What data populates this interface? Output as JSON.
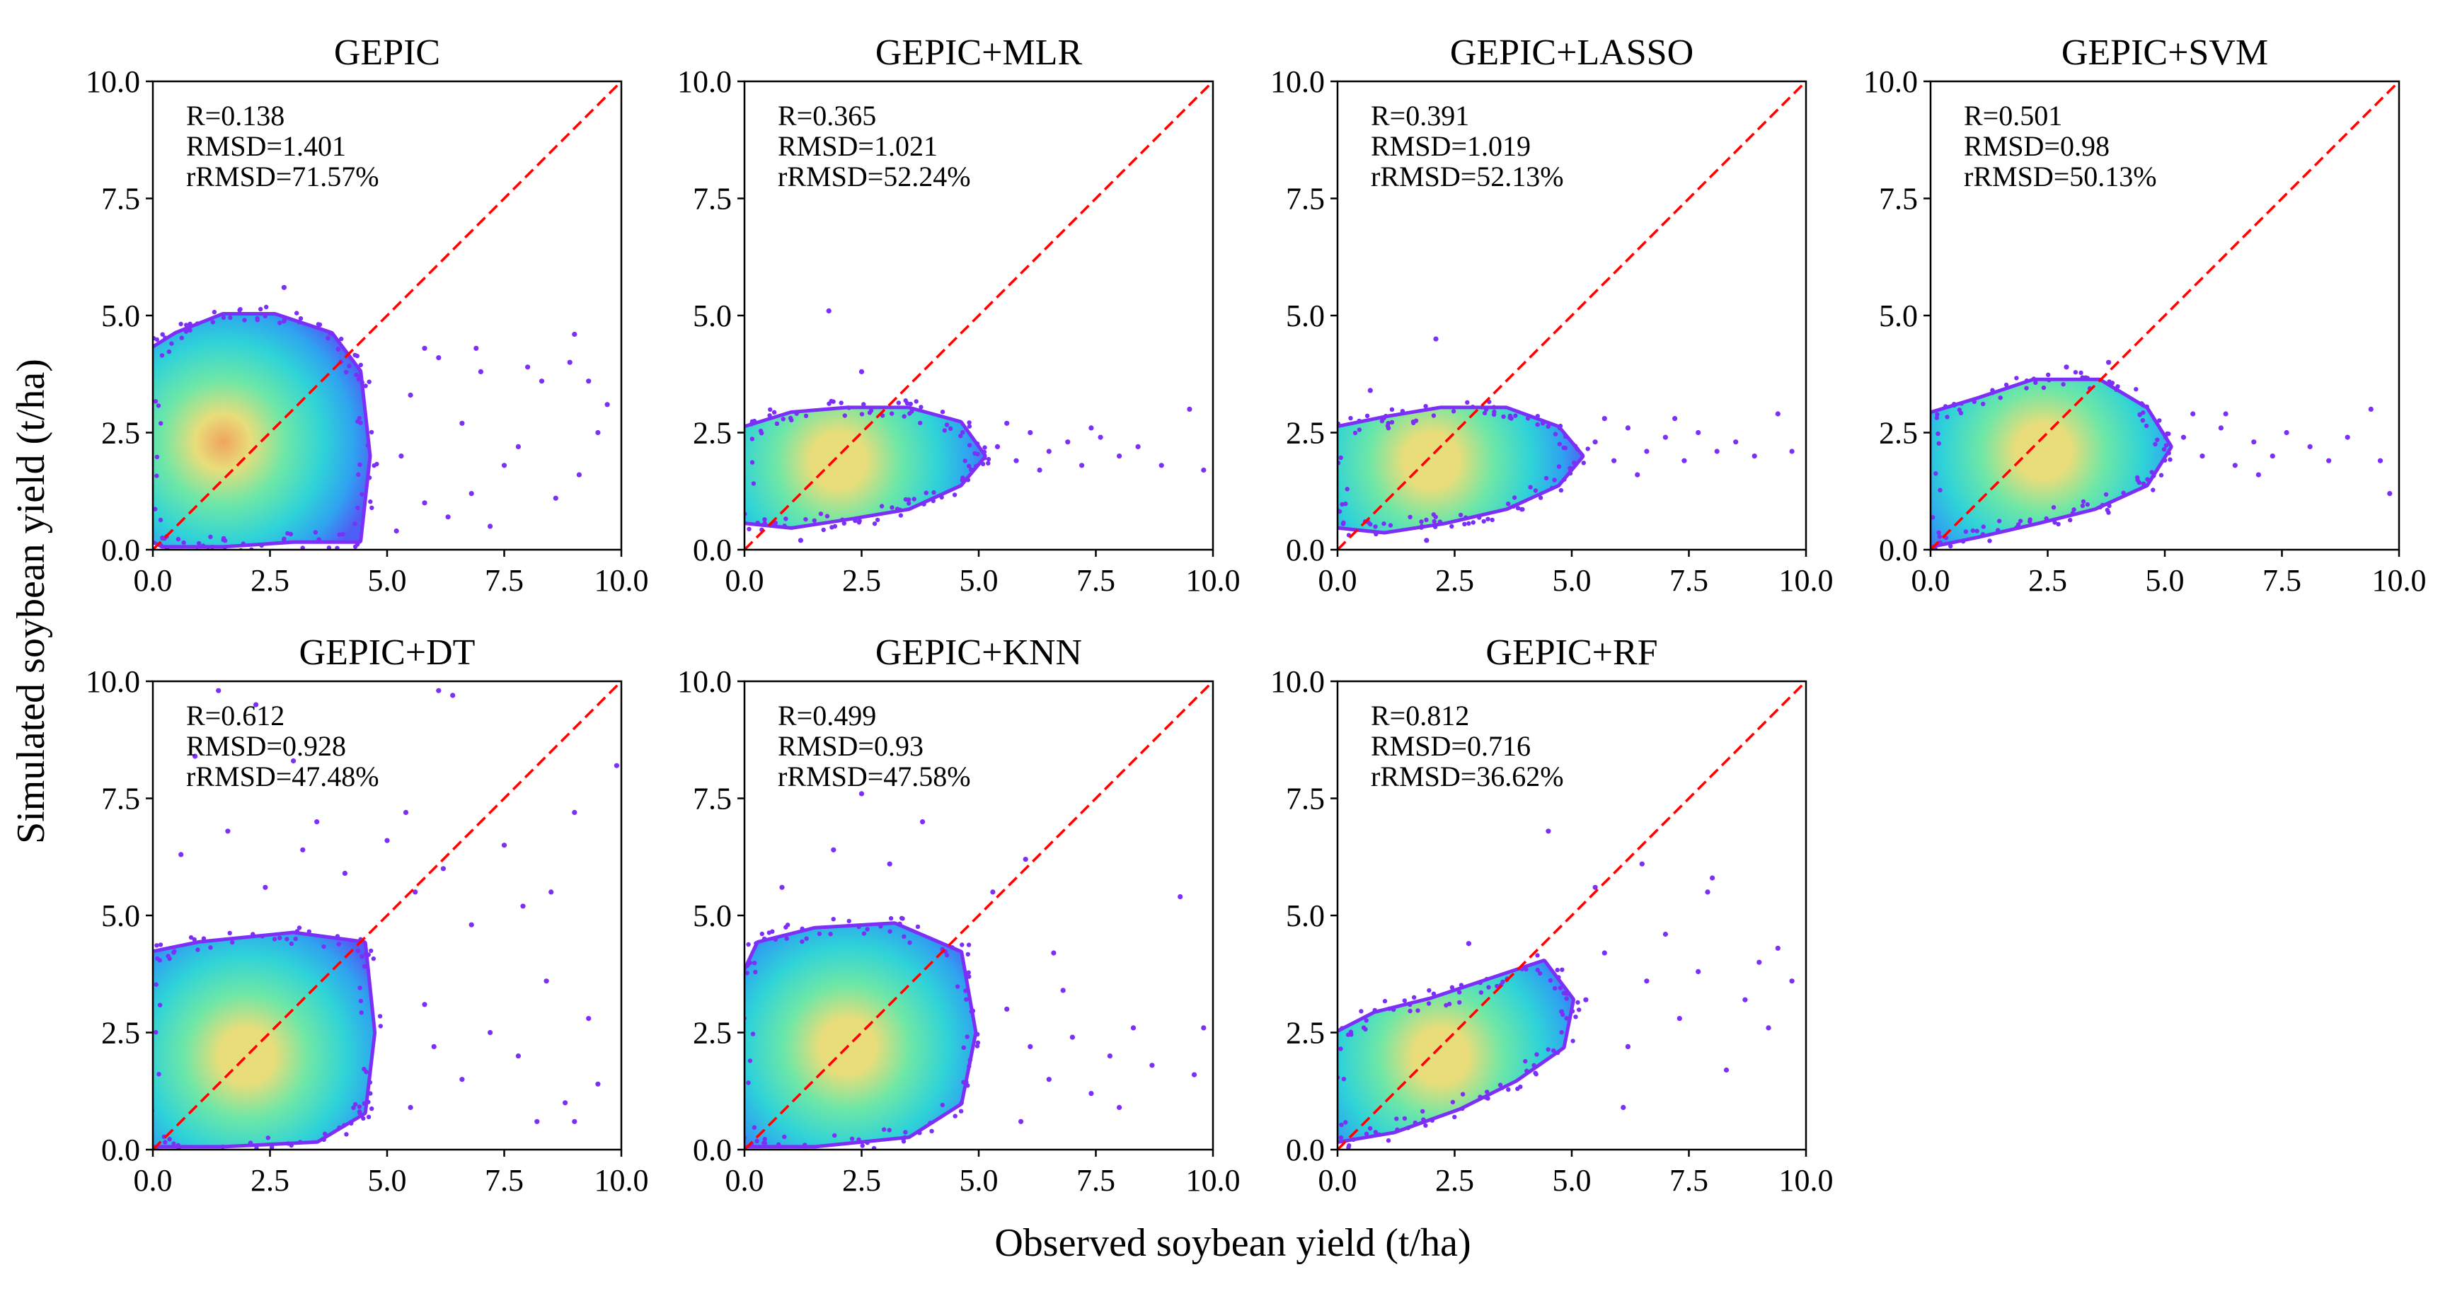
{
  "figure": {
    "xlabel": "Observed soybean yield (t/ha)",
    "ylabel": "Simulated soybean yield (t/ha)"
  },
  "colors": {
    "reference_line": "#ff0000",
    "axes": "#000000",
    "density_colormap": [
      "#7b2ff7",
      "#4f5ff5",
      "#2fa2f0",
      "#2fd3d8",
      "#6fe7a6",
      "#e8dd7a",
      "#f0a45e"
    ]
  },
  "chart_data": [
    {
      "type": "scatter",
      "title": "GEPIC",
      "stats": [
        "R=0.138",
        "RMSD=1.401",
        "rRMSD=71.57%"
      ],
      "xlim": [
        0,
        10
      ],
      "ylim": [
        0,
        10
      ],
      "xticks": [
        "0.0",
        "2.5",
        "5.0",
        "7.5",
        "10.0"
      ],
      "yticks": [
        "0.0",
        "2.5",
        "5.0",
        "7.5",
        "10.0"
      ],
      "reference_line": {
        "x": [
          0,
          10
        ],
        "y": [
          0,
          10
        ],
        "style": "dashed"
      },
      "point_cloud": {
        "color_scale": "density",
        "core": [
          [
            0.02,
            0.2
          ],
          [
            0.2,
            0.1
          ],
          [
            1.5,
            0.1
          ],
          [
            3.0,
            0.2
          ],
          [
            4.4,
            0.2
          ],
          [
            4.6,
            2.0
          ],
          [
            4.4,
            3.8
          ],
          [
            3.8,
            4.6
          ],
          [
            2.6,
            5.0
          ],
          [
            1.5,
            5.0
          ],
          [
            0.5,
            4.6
          ],
          [
            0.02,
            4.3
          ]
        ],
        "center": [
          1.5,
          2.3
        ],
        "outliers": [
          [
            5.2,
            0.4
          ],
          [
            5.8,
            1.0
          ],
          [
            6.3,
            0.7
          ],
          [
            6.8,
            1.2
          ],
          [
            7.2,
            0.5
          ],
          [
            7.8,
            2.2
          ],
          [
            8.3,
            3.6
          ],
          [
            8.6,
            1.1
          ],
          [
            9.0,
            4.6
          ],
          [
            9.3,
            3.6
          ],
          [
            9.5,
            2.5
          ],
          [
            9.7,
            3.1
          ],
          [
            6.1,
            4.1
          ],
          [
            5.5,
            3.3
          ],
          [
            7.0,
            3.8
          ],
          [
            6.6,
            2.7
          ],
          [
            8.0,
            3.9
          ],
          [
            5.3,
            2.0
          ],
          [
            8.9,
            4.0
          ],
          [
            7.5,
            1.8
          ],
          [
            5.8,
            4.3
          ],
          [
            9.1,
            1.6
          ],
          [
            6.9,
            4.3
          ],
          [
            2.8,
            5.6
          ]
        ]
      }
    },
    {
      "type": "scatter",
      "title": "GEPIC+MLR",
      "stats": [
        "R=0.365",
        "RMSD=1.021",
        "rRMSD=52.24%"
      ],
      "xlim": [
        0,
        10
      ],
      "ylim": [
        0,
        10
      ],
      "xticks": [
        "0.0",
        "2.5",
        "5.0",
        "7.5",
        "10.0"
      ],
      "yticks": [
        "0.0",
        "2.5",
        "5.0",
        "7.5",
        "10.0"
      ],
      "reference_line": {
        "x": [
          0,
          10
        ],
        "y": [
          0,
          10
        ],
        "style": "dashed"
      },
      "point_cloud": {
        "color_scale": "density",
        "core": [
          [
            0.02,
            0.6
          ],
          [
            1.0,
            0.5
          ],
          [
            2.3,
            0.7
          ],
          [
            3.5,
            0.9
          ],
          [
            4.6,
            1.4
          ],
          [
            5.1,
            2.0
          ],
          [
            4.6,
            2.7
          ],
          [
            3.5,
            3.0
          ],
          [
            2.2,
            3.0
          ],
          [
            1.0,
            2.9
          ],
          [
            0.02,
            2.6
          ]
        ],
        "center": [
          2.0,
          1.9
        ],
        "outliers": [
          [
            5.4,
            2.2
          ],
          [
            5.8,
            1.9
          ],
          [
            6.1,
            2.5
          ],
          [
            6.5,
            2.1
          ],
          [
            6.9,
            2.3
          ],
          [
            7.2,
            1.8
          ],
          [
            7.6,
            2.4
          ],
          [
            8.0,
            2.0
          ],
          [
            8.4,
            2.2
          ],
          [
            8.9,
            1.8
          ],
          [
            9.5,
            3.0
          ],
          [
            9.8,
            1.7
          ],
          [
            6.3,
            1.7
          ],
          [
            7.4,
            2.6
          ],
          [
            5.6,
            2.7
          ],
          [
            1.8,
            5.1
          ],
          [
            2.5,
            3.8
          ],
          [
            1.2,
            0.2
          ]
        ]
      }
    },
    {
      "type": "scatter",
      "title": "GEPIC+LASSO",
      "stats": [
        "R=0.391",
        "RMSD=1.019",
        "rRMSD=52.13%"
      ],
      "xlim": [
        0,
        10
      ],
      "ylim": [
        0,
        10
      ],
      "xticks": [
        "0.0",
        "2.5",
        "5.0",
        "7.5",
        "10.0"
      ],
      "yticks": [
        "0.0",
        "2.5",
        "5.0",
        "7.5",
        "10.0"
      ],
      "reference_line": {
        "x": [
          0,
          10
        ],
        "y": [
          0,
          10
        ],
        "style": "dashed"
      },
      "point_cloud": {
        "color_scale": "density",
        "core": [
          [
            0.02,
            0.5
          ],
          [
            1.0,
            0.4
          ],
          [
            2.3,
            0.6
          ],
          [
            3.6,
            0.9
          ],
          [
            4.7,
            1.4
          ],
          [
            5.2,
            2.0
          ],
          [
            4.7,
            2.6
          ],
          [
            3.6,
            3.0
          ],
          [
            2.2,
            3.0
          ],
          [
            1.0,
            2.8
          ],
          [
            0.02,
            2.6
          ]
        ],
        "center": [
          2.0,
          1.9
        ],
        "outliers": [
          [
            5.5,
            2.3
          ],
          [
            5.9,
            1.9
          ],
          [
            6.2,
            2.6
          ],
          [
            6.6,
            2.1
          ],
          [
            7.0,
            2.4
          ],
          [
            7.4,
            1.9
          ],
          [
            7.7,
            2.5
          ],
          [
            8.1,
            2.1
          ],
          [
            8.5,
            2.3
          ],
          [
            8.9,
            2.0
          ],
          [
            9.4,
            2.9
          ],
          [
            9.7,
            2.1
          ],
          [
            6.4,
            1.6
          ],
          [
            7.2,
            2.8
          ],
          [
            5.7,
            2.8
          ],
          [
            2.1,
            4.5
          ],
          [
            0.7,
            3.4
          ],
          [
            1.9,
            0.2
          ]
        ]
      }
    },
    {
      "type": "scatter",
      "title": "GEPIC+SVM",
      "stats": [
        "R=0.501",
        "RMSD=0.98",
        "rRMSD=50.13%"
      ],
      "xlim": [
        0,
        10
      ],
      "ylim": [
        0,
        10
      ],
      "xticks": [
        "0.0",
        "2.5",
        "5.0",
        "7.5",
        "10.0"
      ],
      "yticks": [
        "0.0",
        "2.5",
        "5.0",
        "7.5",
        "10.0"
      ],
      "reference_line": {
        "x": [
          0,
          10
        ],
        "y": [
          0,
          10
        ],
        "style": "dashed"
      },
      "point_cloud": {
        "color_scale": "density",
        "core": [
          [
            0.02,
            0.1
          ],
          [
            1.0,
            0.3
          ],
          [
            2.3,
            0.6
          ],
          [
            3.5,
            0.9
          ],
          [
            4.6,
            1.4
          ],
          [
            5.1,
            2.2
          ],
          [
            4.6,
            3.0
          ],
          [
            3.6,
            3.6
          ],
          [
            2.2,
            3.6
          ],
          [
            1.0,
            3.2
          ],
          [
            0.02,
            2.9
          ]
        ],
        "center": [
          2.4,
          2.1
        ],
        "outliers": [
          [
            5.4,
            2.4
          ],
          [
            5.8,
            2.0
          ],
          [
            6.2,
            2.6
          ],
          [
            6.5,
            1.8
          ],
          [
            6.9,
            2.3
          ],
          [
            7.3,
            2.0
          ],
          [
            7.6,
            2.5
          ],
          [
            8.1,
            2.2
          ],
          [
            8.5,
            1.9
          ],
          [
            8.9,
            2.4
          ],
          [
            9.4,
            3.0
          ],
          [
            9.8,
            1.2
          ],
          [
            9.6,
            1.9
          ],
          [
            6.3,
            2.9
          ],
          [
            7.0,
            1.6
          ],
          [
            5.6,
            2.9
          ],
          [
            2.9,
            3.9
          ],
          [
            3.8,
            4.0
          ]
        ]
      }
    },
    {
      "type": "scatter",
      "title": "GEPIC+DT",
      "stats": [
        "R=0.612",
        "RMSD=0.928",
        "rRMSD=47.48%"
      ],
      "xlim": [
        0,
        10
      ],
      "ylim": [
        0,
        10
      ],
      "xticks": [
        "0.0",
        "2.5",
        "5.0",
        "7.5",
        "10.0"
      ],
      "yticks": [
        "0.0",
        "2.5",
        "5.0",
        "7.5",
        "10.0"
      ],
      "reference_line": {
        "x": [
          0,
          10
        ],
        "y": [
          0,
          10
        ],
        "style": "dashed"
      },
      "point_cloud": {
        "color_scale": "density",
        "core": [
          [
            0.02,
            0.1
          ],
          [
            1.5,
            0.1
          ],
          [
            3.5,
            0.2
          ],
          [
            4.5,
            0.8
          ],
          [
            4.7,
            2.5
          ],
          [
            4.5,
            4.4
          ],
          [
            3.0,
            4.6
          ],
          [
            1.0,
            4.4
          ],
          [
            0.02,
            4.2
          ]
        ],
        "center": [
          2.0,
          2.0
        ],
        "outliers": [
          [
            6.1,
            9.8
          ],
          [
            6.4,
            9.7
          ],
          [
            9.9,
            8.2
          ],
          [
            9.0,
            7.2
          ],
          [
            8.5,
            5.5
          ],
          [
            7.9,
            5.2
          ],
          [
            7.5,
            6.5
          ],
          [
            6.8,
            4.8
          ],
          [
            6.2,
            6.0
          ],
          [
            5.6,
            5.5
          ],
          [
            5.4,
            7.2
          ],
          [
            5.0,
            6.6
          ],
          [
            3.5,
            7.0
          ],
          [
            2.2,
            9.5
          ],
          [
            1.4,
            9.8
          ],
          [
            0.9,
            8.4
          ],
          [
            1.6,
            6.8
          ],
          [
            3.0,
            8.3
          ],
          [
            5.5,
            0.9
          ],
          [
            6.6,
            1.5
          ],
          [
            7.2,
            2.5
          ],
          [
            7.8,
            2.0
          ],
          [
            8.4,
            3.6
          ],
          [
            8.8,
            1.0
          ],
          [
            9.3,
            2.8
          ],
          [
            9.5,
            1.4
          ],
          [
            5.8,
            3.1
          ],
          [
            6.0,
            2.2
          ],
          [
            8.2,
            0.6
          ],
          [
            9.0,
            0.6
          ],
          [
            4.1,
            5.9
          ],
          [
            3.2,
            6.4
          ],
          [
            2.4,
            5.6
          ],
          [
            0.6,
            6.3
          ]
        ]
      }
    },
    {
      "type": "scatter",
      "title": "GEPIC+KNN",
      "stats": [
        "R=0.499",
        "RMSD=0.93",
        "rRMSD=47.58%"
      ],
      "xlim": [
        0,
        10
      ],
      "ylim": [
        0,
        10
      ],
      "xticks": [
        "0.0",
        "2.5",
        "5.0",
        "7.5",
        "10.0"
      ],
      "yticks": [
        "0.0",
        "2.5",
        "5.0",
        "7.5",
        "10.0"
      ],
      "reference_line": {
        "x": [
          0,
          10
        ],
        "y": [
          0,
          10
        ],
        "style": "dashed"
      },
      "point_cloud": {
        "color_scale": "density",
        "core": [
          [
            0.02,
            0.1
          ],
          [
            1.5,
            0.1
          ],
          [
            3.5,
            0.3
          ],
          [
            4.6,
            1.0
          ],
          [
            4.9,
            2.5
          ],
          [
            4.6,
            4.2
          ],
          [
            3.2,
            4.8
          ],
          [
            1.5,
            4.7
          ],
          [
            0.3,
            4.4
          ],
          [
            0.02,
            3.8
          ]
        ],
        "center": [
          2.2,
          2.2
        ],
        "outliers": [
          [
            5.3,
            5.5
          ],
          [
            6.0,
            6.2
          ],
          [
            2.5,
            7.6
          ],
          [
            3.8,
            7.0
          ],
          [
            1.9,
            6.4
          ],
          [
            0.8,
            5.6
          ],
          [
            5.6,
            3.0
          ],
          [
            6.1,
            2.2
          ],
          [
            6.5,
            1.5
          ],
          [
            7.0,
            2.4
          ],
          [
            7.4,
            1.2
          ],
          [
            7.8,
            2.0
          ],
          [
            8.3,
            2.6
          ],
          [
            8.7,
            1.8
          ],
          [
            9.3,
            5.4
          ],
          [
            9.6,
            1.6
          ],
          [
            9.8,
            2.6
          ],
          [
            6.8,
            3.4
          ],
          [
            8.0,
            0.9
          ],
          [
            5.9,
            0.6
          ],
          [
            6.6,
            4.2
          ],
          [
            3.1,
            6.1
          ]
        ]
      }
    },
    {
      "type": "scatter",
      "title": "GEPIC+RF",
      "stats": [
        "R=0.812",
        "RMSD=0.716",
        "rRMSD=36.62%"
      ],
      "xlim": [
        0,
        10
      ],
      "ylim": [
        0,
        10
      ],
      "xticks": [
        "0.0",
        "2.5",
        "5.0",
        "7.5",
        "10.0"
      ],
      "yticks": [
        "0.0",
        "2.5",
        "5.0",
        "7.5",
        "10.0"
      ],
      "reference_line": {
        "x": [
          0,
          10
        ],
        "y": [
          0,
          10
        ],
        "style": "dashed"
      },
      "point_cloud": {
        "color_scale": "density",
        "core": [
          [
            0.02,
            0.2
          ],
          [
            1.2,
            0.4
          ],
          [
            2.6,
            0.9
          ],
          [
            3.8,
            1.5
          ],
          [
            4.8,
            2.2
          ],
          [
            5.0,
            3.2
          ],
          [
            4.4,
            4.0
          ],
          [
            3.2,
            3.6
          ],
          [
            2.0,
            3.2
          ],
          [
            0.8,
            2.9
          ],
          [
            0.02,
            2.5
          ]
        ],
        "center": [
          2.2,
          2.0
        ],
        "outliers": [
          [
            5.3,
            3.2
          ],
          [
            5.7,
            4.2
          ],
          [
            6.2,
            2.2
          ],
          [
            6.6,
            3.6
          ],
          [
            7.0,
            4.6
          ],
          [
            7.3,
            2.8
          ],
          [
            7.7,
            3.8
          ],
          [
            8.0,
            5.8
          ],
          [
            8.3,
            1.7
          ],
          [
            8.7,
            3.2
          ],
          [
            9.0,
            4.0
          ],
          [
            9.4,
            4.3
          ],
          [
            9.7,
            3.6
          ],
          [
            6.5,
            6.1
          ],
          [
            5.5,
            5.6
          ],
          [
            9.2,
            2.6
          ],
          [
            6.1,
            0.9
          ],
          [
            7.9,
            5.5
          ],
          [
            4.5,
            6.8
          ],
          [
            2.8,
            4.4
          ]
        ]
      }
    }
  ]
}
